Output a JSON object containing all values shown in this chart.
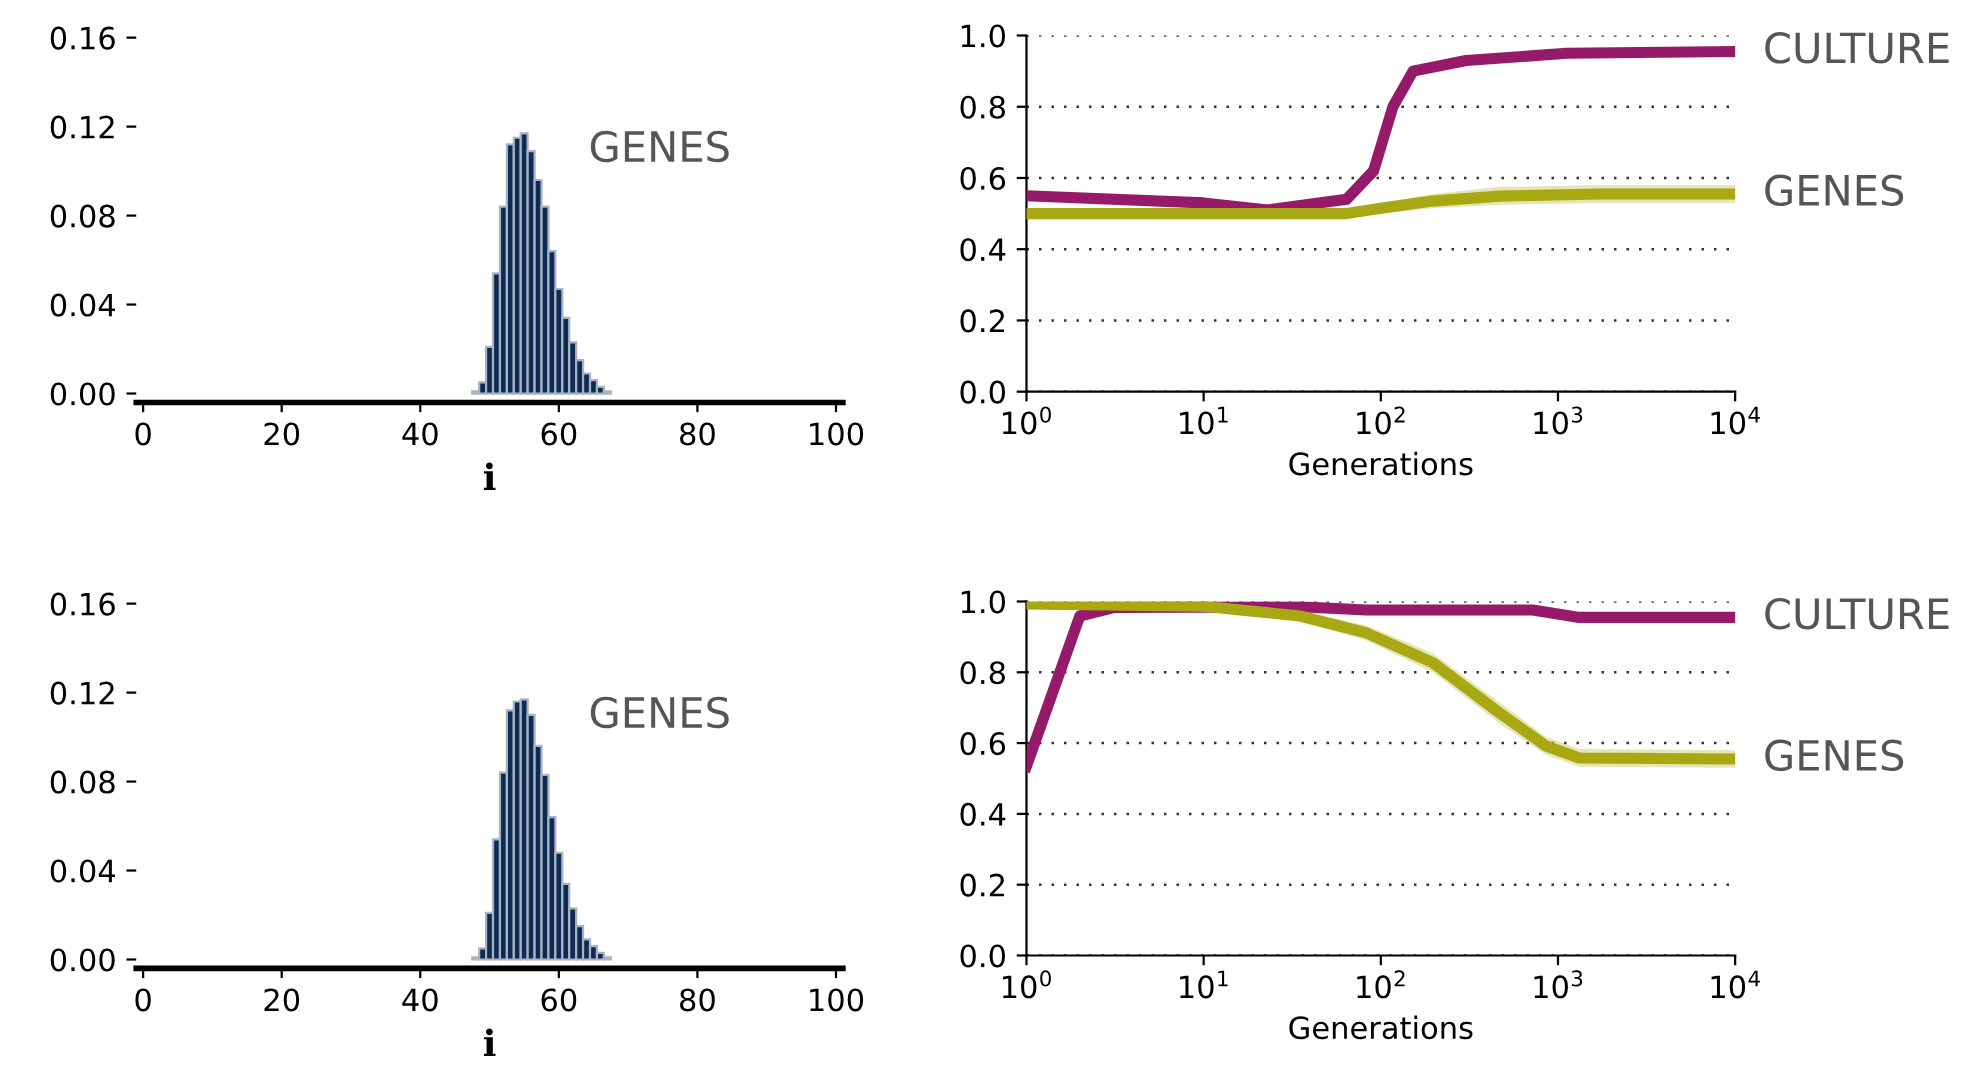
{
  "chart_data": [
    {
      "type": "histogram",
      "xlabel": "i",
      "annotations": [
        "GENES"
      ],
      "color": "#0d2b55",
      "bins": [
        47.5,
        48.5,
        49.5,
        50.5,
        51.5,
        52.5,
        53.5,
        54.5,
        55.5,
        56.5,
        57.5,
        58.5,
        59.5,
        60.5,
        61.5,
        62.5,
        63.5,
        64.5,
        65.5,
        66.5,
        67.5
      ],
      "values": [
        0.001,
        0.005,
        0.021,
        0.054,
        0.084,
        0.112,
        0.115,
        0.117,
        0.109,
        0.096,
        0.084,
        0.064,
        0.047,
        0.034,
        0.023,
        0.015,
        0.009,
        0.006,
        0.003,
        0.001
      ],
      "xlim": [
        -1,
        101
      ],
      "xticks": [
        0,
        20,
        40,
        60,
        80,
        100
      ],
      "ylim": [
        -0.004,
        0.16
      ],
      "yticks": [
        {
          "value": 0,
          "label": "0.00"
        },
        {
          "value": 0.04,
          "label": "0.04"
        },
        {
          "value": 0.08,
          "label": "0.08"
        },
        {
          "value": 0.12,
          "label": "0.12"
        },
        {
          "value": 0.16,
          "label": "0.16"
        }
      ],
      "grid": false
    },
    {
      "type": "line",
      "xlabel": "Generations",
      "log": "x",
      "grid": "y",
      "xlim": [
        1,
        10000
      ],
      "ylim": [
        0,
        1
      ],
      "xticks": [
        {
          "value": 1,
          "label": "10$^{0}$"
        },
        {
          "value": 10,
          "label": "10$^{1}$"
        },
        {
          "value": 100,
          "label": "10$^{2}$"
        },
        {
          "value": 1000,
          "label": "10$^{3}$"
        },
        {
          "value": 10000,
          "label": "10$^{4}$"
        }
      ],
      "yticks": [
        {
          "value": 0,
          "label": "0.0"
        },
        {
          "value": 0.2,
          "label": "0.2"
        },
        {
          "value": 0.4,
          "label": "0.4"
        },
        {
          "value": 0.6,
          "label": "0.6"
        },
        {
          "value": 0.8,
          "label": "0.8"
        },
        {
          "value": 1,
          "label": "1.0"
        }
      ],
      "series": [
        {
          "name": "CULTURE",
          "color": "#961a6a",
          "x": [
            1,
            10,
            23,
            64,
            91,
            117,
            152,
            303,
            1120,
            10000
          ],
          "values": [
            0.55,
            0.53,
            0.51,
            0.54,
            0.62,
            0.8,
            0.9,
            0.93,
            0.95,
            0.955
          ]
        },
        {
          "name": "GENES",
          "color": "#a8a812",
          "x": [
            1,
            10,
            64,
            100,
            196,
            468,
            1700,
            10000
          ],
          "values": [
            0.5,
            0.5,
            0.5,
            0.515,
            0.535,
            0.549,
            0.555,
            0.555
          ],
          "lower": [
            0.49,
            0.49,
            0.49,
            0.5,
            0.515,
            0.525,
            0.53,
            0.53
          ],
          "upper": [
            0.51,
            0.51,
            0.51,
            0.53,
            0.555,
            0.575,
            0.58,
            0.58
          ]
        }
      ]
    },
    {
      "type": "histogram",
      "xlabel": "i",
      "annotations": [
        "GENES"
      ],
      "color": "#0d2b55",
      "bins": [
        47.5,
        48.5,
        49.5,
        50.5,
        51.5,
        52.5,
        53.5,
        54.5,
        55.5,
        56.5,
        57.5,
        58.5,
        59.5,
        60.5,
        61.5,
        62.5,
        63.5,
        64.5,
        65.5,
        66.5,
        67.5
      ],
      "values": [
        0.001,
        0.005,
        0.021,
        0.054,
        0.084,
        0.112,
        0.116,
        0.117,
        0.11,
        0.096,
        0.083,
        0.064,
        0.048,
        0.034,
        0.023,
        0.015,
        0.009,
        0.006,
        0.003,
        0.001
      ],
      "xlim": [
        -1,
        101
      ],
      "xticks": [
        0,
        20,
        40,
        60,
        80,
        100
      ],
      "ylim": [
        -0.004,
        0.16
      ],
      "yticks": [
        {
          "value": 0,
          "label": "0.00"
        },
        {
          "value": 0.04,
          "label": "0.04"
        },
        {
          "value": 0.08,
          "label": "0.08"
        },
        {
          "value": 0.12,
          "label": "0.12"
        },
        {
          "value": 0.16,
          "label": "0.16"
        }
      ],
      "grid": false
    },
    {
      "type": "line",
      "xlabel": "Generations",
      "log": "x",
      "grid": "y",
      "xlim": [
        1,
        10000
      ],
      "ylim": [
        0,
        1
      ],
      "xticks": [
        {
          "value": 1,
          "label": "10$^{0}$"
        },
        {
          "value": 10,
          "label": "10$^{1}$"
        },
        {
          "value": 100,
          "label": "10$^{2}$"
        },
        {
          "value": 1000,
          "label": "10$^{3}$"
        },
        {
          "value": 10000,
          "label": "10$^{4}$"
        }
      ],
      "yticks": [
        {
          "value": 0,
          "label": "0.0"
        },
        {
          "value": 0.2,
          "label": "0.2"
        },
        {
          "value": 0.4,
          "label": "0.4"
        },
        {
          "value": 0.6,
          "label": "0.6"
        },
        {
          "value": 0.8,
          "label": "0.8"
        },
        {
          "value": 1,
          "label": "1.0"
        }
      ],
      "series": [
        {
          "name": "CULTURE",
          "color": "#961a6a",
          "x": [
            1,
            2,
            3.1,
            35,
            83,
            720,
            1320,
            10000
          ],
          "values": [
            0.535,
            0.959,
            0.983,
            0.985,
            0.976,
            0.976,
            0.955,
            0.955
          ]
        },
        {
          "name": "GENES",
          "color": "#a8a812",
          "x": [
            1,
            9.6,
            35,
            83,
            197,
            468,
            856,
            1320,
            10000
          ],
          "values": [
            0.993,
            0.987,
            0.959,
            0.911,
            0.827,
            0.685,
            0.592,
            0.558,
            0.555
          ],
          "lower": [
            0.983,
            0.977,
            0.945,
            0.89,
            0.8,
            0.655,
            0.567,
            0.533,
            0.53
          ],
          "upper": [
            1.0,
            0.997,
            0.973,
            0.932,
            0.854,
            0.715,
            0.617,
            0.583,
            0.58
          ]
        }
      ]
    }
  ]
}
